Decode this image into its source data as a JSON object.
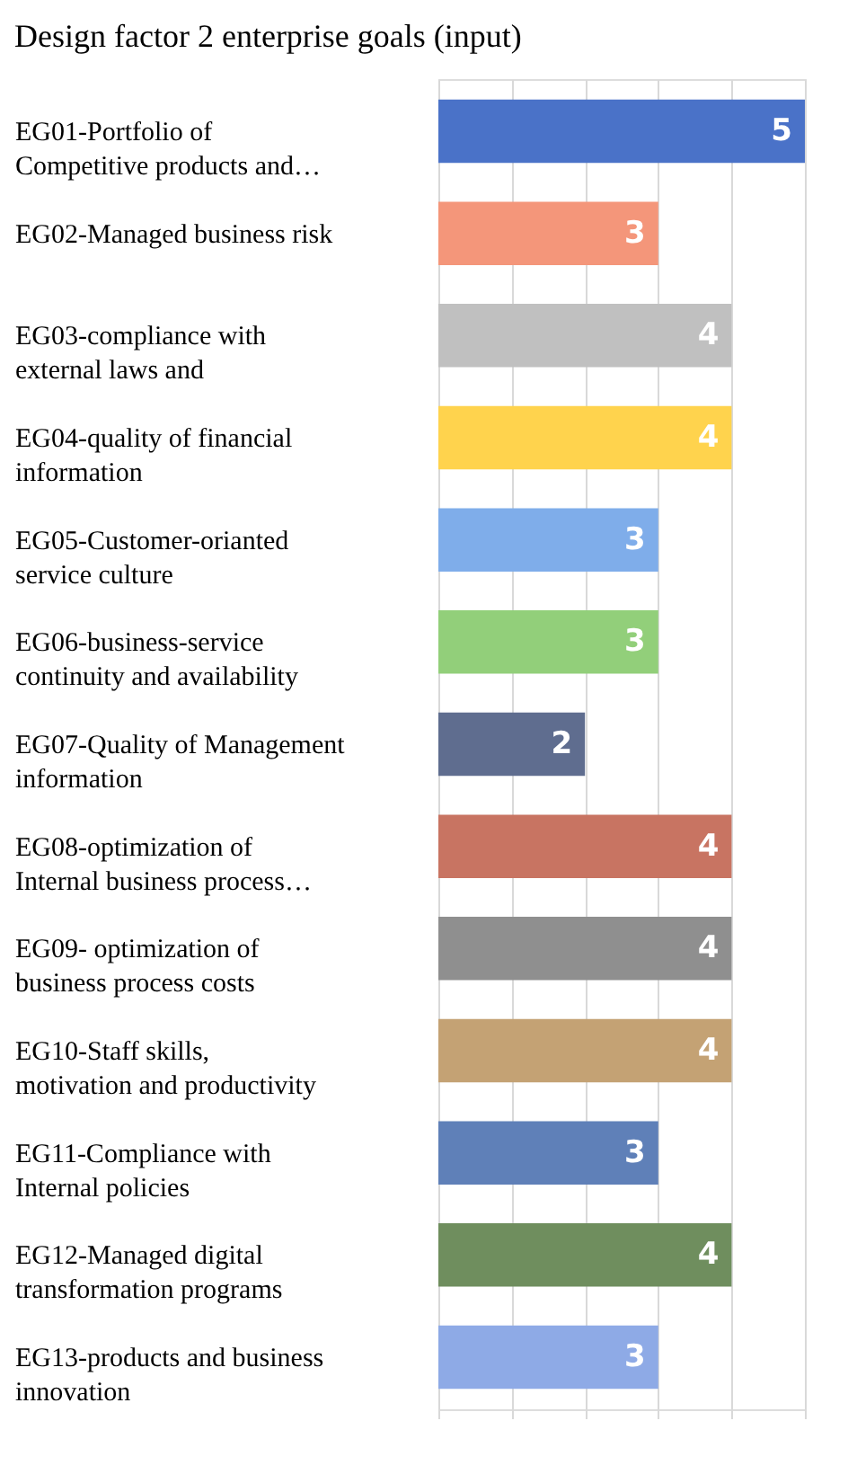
{
  "chart_data": {
    "type": "bar",
    "orientation": "horizontal",
    "title": "Design factor 2 enterprise goals (input)",
    "categories": [
      "EG01-Portfolio of Competitive products and…",
      "EG02-Managed business risk",
      "EG03-compliance with external laws and",
      "EG04-quality of financial information",
      "EG05-Customer-orianted service culture",
      "EG06-business-service continuity and availability",
      "EG07-Quality of Management information",
      "EG08-optimization of Internal business process…",
      "EG09- optimization of business process costs",
      "EG10-Staff skills, motivation and productivity",
      "EG11-Compliance with Internal policies",
      "EG12-Managed digital transformation programs",
      "EG13-products and business innovation"
    ],
    "values": [
      5,
      3,
      4,
      4,
      3,
      3,
      2,
      4,
      4,
      4,
      3,
      4,
      3
    ],
    "colors": [
      "#4a72c8",
      "#f4967a",
      "#c0c0c0",
      "#ffd34d",
      "#7fadea",
      "#92cf7a",
      "#5f6d8f",
      "#c87462",
      "#8f8f8f",
      "#c4a274",
      "#5f80b8",
      "#6f8e5e",
      "#8eaae6"
    ],
    "xlim": [
      0,
      5
    ],
    "xticks": [
      {
        "value": 0,
        "label": null
      },
      {
        "value": 1,
        "label": null
      },
      {
        "value": 2,
        "label": null
      },
      {
        "value": 3,
        "label": null
      },
      {
        "value": 4,
        "label": null
      },
      {
        "value": 5,
        "label": null
      }
    ],
    "tick_labels": "y",
    "grid": "x",
    "data_labels": true
  }
}
